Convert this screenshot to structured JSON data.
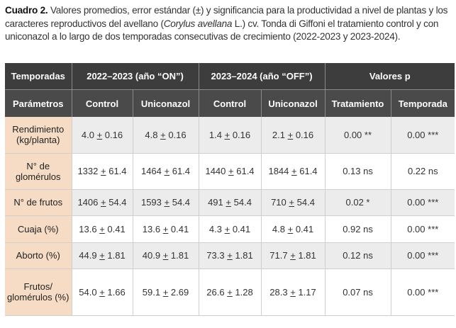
{
  "caption": {
    "label": "Cuadro 2.",
    "text_before_italic": " Valores promedios, error estándar (±) y significancia para la productividad a nivel de plantas y los caracteres reproductivos del avellano (",
    "italic": "Corylus avellana",
    "text_after_italic": " L.) cv. Tonda di Giffoni el tratamiento control y con uniconazol a lo largo de dos temporadas consecutivas de crecimiento (2022-2023 y 2023-2024)."
  },
  "table": {
    "header_row": [
      "Temporadas",
      "2022–2023 (año “ON”)",
      "2023–2024 (año “OFF”)",
      "Valores p"
    ],
    "sub_header_row": [
      "Parámetros",
      "Control",
      "Uniconazol",
      "Control",
      "Uniconazol",
      "Tratamiento",
      "Temporada"
    ],
    "rows": [
      {
        "param": "Rendimiento (kg/planta)",
        "cells": [
          [
            "4.0",
            "0.16"
          ],
          [
            "4.8",
            "0.16"
          ],
          [
            "1.4",
            "0.16"
          ],
          [
            "2.1",
            "0.16"
          ]
        ],
        "p_trat": "0.00 **",
        "p_temp": "0.00 ***"
      },
      {
        "param": "N° de glomérulos",
        "cells": [
          [
            "1332",
            "61.4"
          ],
          [
            "1464",
            "61.4"
          ],
          [
            "1440",
            "61.4"
          ],
          [
            "1844",
            "61.4"
          ]
        ],
        "p_trat": "0.13 ns",
        "p_temp": "0.22 ns"
      },
      {
        "param": "N° de frutos",
        "cells": [
          [
            "1406",
            "54.4"
          ],
          [
            "1593",
            "54.4"
          ],
          [
            "491",
            "54.4"
          ],
          [
            "710",
            "54.4"
          ]
        ],
        "p_trat": "0.02 *",
        "p_temp": "0.00 ***"
      },
      {
        "param": "Cuaja (%)",
        "cells": [
          [
            "13.6",
            "0.41"
          ],
          [
            "13.6",
            "0.41"
          ],
          [
            "4.3",
            "0.41"
          ],
          [
            "4.8",
            "0.41"
          ]
        ],
        "p_trat": "0.92 ns",
        "p_temp": "0.00 ***"
      },
      {
        "param": "Aborto (%)",
        "cells": [
          [
            "44.9",
            "1.81"
          ],
          [
            "40.9",
            "1.81"
          ],
          [
            "73.3",
            "1.81"
          ],
          [
            "71.7",
            "1.81"
          ]
        ],
        "p_trat": "0.12 ns",
        "p_temp": "0.00 ***"
      },
      {
        "param": "Frutos/ glomérulos (%)",
        "cells": [
          [
            "54.0",
            "1.66"
          ],
          [
            "59.1",
            "2.69"
          ],
          [
            "26.6",
            "1.28"
          ],
          [
            "28.3",
            "1.17"
          ]
        ],
        "p_trat": "0.07 ns",
        "p_temp": "0.00 ***"
      }
    ]
  },
  "colors": {
    "header_bg": "#3d3d3d",
    "param_bg": "#f6dcc4",
    "shade_bg": "#ececec"
  }
}
